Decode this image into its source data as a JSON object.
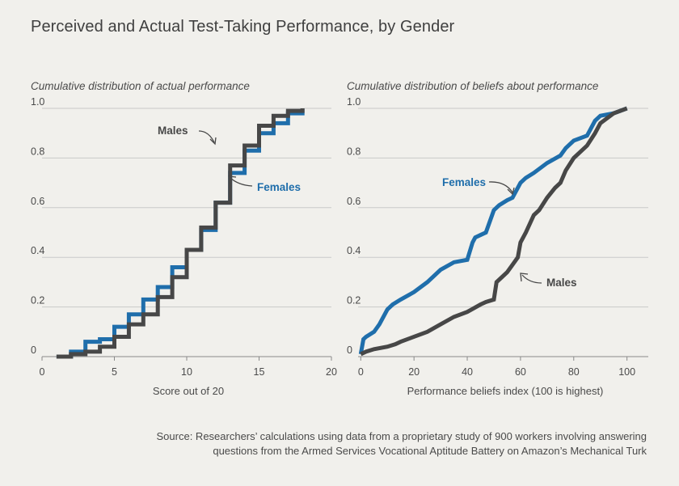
{
  "title": "Perceived and Actual Test-Taking Performance, by Gender",
  "source_line1": "Source: Researchers’ calculations using data from a proprietary study of 900 workers involving answering",
  "source_line2": "questions from the Armed Services Vocational Aptitude Battery on Amazon’s Mechanical Turk",
  "colors": {
    "males": "#474747",
    "females": "#1f6eab",
    "grid": "#c9c9c9"
  },
  "chart_data": [
    {
      "type": "line",
      "step": true,
      "subtitle": "Cumulative distribution of actual performance",
      "xlabel": "Score out of 20",
      "xlim": [
        0,
        20
      ],
      "ylim": [
        0,
        1
      ],
      "xticks": [
        0,
        5,
        10,
        15,
        20
      ],
      "yticks": [
        0,
        0.2,
        0.4,
        0.6,
        0.8,
        1.0
      ],
      "ytick_labels": [
        "0",
        "0.2",
        "0.4",
        "0.6",
        "0.8",
        "1.0"
      ],
      "annotations": [
        {
          "text": "Males",
          "series": "Males"
        },
        {
          "text": "Females",
          "series": "Females"
        }
      ],
      "series": [
        {
          "name": "Males",
          "x": [
            1,
            2,
            3,
            4,
            5,
            6,
            7,
            8,
            9,
            10,
            11,
            12,
            13,
            14,
            15,
            16,
            17,
            18
          ],
          "y": [
            0,
            0.01,
            0.02,
            0.04,
            0.08,
            0.13,
            0.17,
            0.24,
            0.32,
            0.43,
            0.52,
            0.62,
            0.77,
            0.85,
            0.93,
            0.97,
            0.99,
            1.0
          ]
        },
        {
          "name": "Females",
          "x": [
            1,
            2,
            3,
            4,
            5,
            6,
            7,
            8,
            9,
            10,
            11,
            12,
            13,
            14,
            15,
            16,
            17,
            18
          ],
          "y": [
            0,
            0.02,
            0.06,
            0.07,
            0.12,
            0.17,
            0.23,
            0.28,
            0.36,
            0.43,
            0.51,
            0.62,
            0.74,
            0.83,
            0.9,
            0.94,
            0.98,
            1.0
          ]
        }
      ]
    },
    {
      "type": "line",
      "step": false,
      "subtitle": "Cumulative distribution of beliefs about performance",
      "xlabel": "Performance beliefs index (100 is highest)",
      "xlim": [
        -1,
        108
      ],
      "ylim": [
        0,
        1
      ],
      "xticks": [
        0,
        20,
        40,
        60,
        80,
        100
      ],
      "yticks": [
        0,
        0.2,
        0.4,
        0.6,
        0.8,
        1.0
      ],
      "ytick_labels": [
        "0",
        "0.2",
        "0.4",
        "0.6",
        "0.8",
        "1.0"
      ],
      "annotations": [
        {
          "text": "Females",
          "series": "Females"
        },
        {
          "text": "Males",
          "series": "Males"
        }
      ],
      "series": [
        {
          "name": "Females",
          "x": [
            0,
            1,
            2,
            5,
            7,
            10,
            12,
            15,
            20,
            25,
            30,
            35,
            40,
            42,
            43,
            45,
            47,
            50,
            52,
            55,
            57,
            60,
            62,
            65,
            70,
            75,
            77,
            80,
            85,
            88,
            90,
            95,
            100
          ],
          "y": [
            0.01,
            0.07,
            0.08,
            0.1,
            0.13,
            0.19,
            0.21,
            0.23,
            0.26,
            0.3,
            0.35,
            0.38,
            0.39,
            0.46,
            0.48,
            0.49,
            0.5,
            0.59,
            0.61,
            0.63,
            0.64,
            0.7,
            0.72,
            0.74,
            0.78,
            0.81,
            0.84,
            0.87,
            0.89,
            0.95,
            0.97,
            0.98,
            1.0
          ]
        },
        {
          "name": "Males",
          "x": [
            0,
            2,
            5,
            10,
            13,
            15,
            20,
            25,
            30,
            35,
            40,
            45,
            47,
            50,
            51,
            53,
            55,
            57,
            59,
            60,
            62,
            65,
            67,
            70,
            73,
            75,
            77,
            80,
            85,
            88,
            90,
            95,
            100
          ],
          "y": [
            0.01,
            0.02,
            0.03,
            0.04,
            0.05,
            0.06,
            0.08,
            0.1,
            0.13,
            0.16,
            0.18,
            0.21,
            0.22,
            0.23,
            0.3,
            0.32,
            0.34,
            0.37,
            0.4,
            0.46,
            0.5,
            0.57,
            0.59,
            0.64,
            0.68,
            0.7,
            0.75,
            0.8,
            0.85,
            0.9,
            0.94,
            0.98,
            1.0
          ]
        }
      ]
    }
  ]
}
